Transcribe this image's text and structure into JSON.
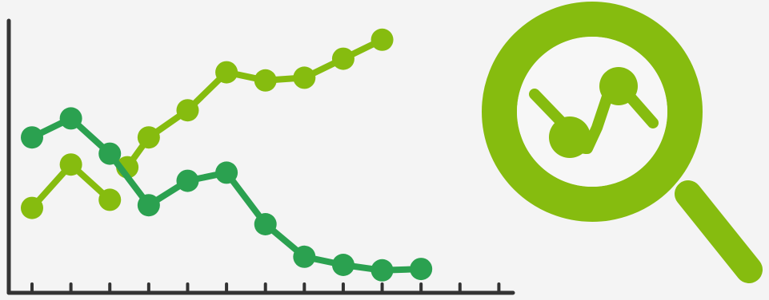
{
  "chart_data": {
    "type": "line",
    "title": "",
    "xlabel": "",
    "ylabel": "",
    "x": [
      0,
      1,
      2,
      3,
      4,
      5,
      6,
      7,
      8,
      9,
      10,
      11,
      12
    ],
    "xlim": [
      0,
      12.3
    ],
    "ylim": [
      0,
      100
    ],
    "grid": false,
    "legend": "none",
    "ticks_x_count": 13,
    "series": [
      {
        "color": "#86bc0f",
        "points": [
          [
            0,
            31
          ],
          [
            1,
            47
          ],
          [
            2,
            34
          ],
          [
            2.45,
            46
          ],
          [
            3,
            57
          ],
          [
            4,
            67
          ],
          [
            5,
            81
          ],
          [
            6,
            78
          ],
          [
            7,
            79
          ],
          [
            8,
            86
          ],
          [
            9,
            93
          ]
        ],
        "break_after_index": 2
      },
      {
        "color": "#2ba150",
        "points": [
          [
            0,
            57
          ],
          [
            1,
            64
          ],
          [
            2,
            51
          ],
          [
            3,
            32
          ],
          [
            4,
            41
          ],
          [
            5,
            44
          ],
          [
            6,
            25
          ],
          [
            7,
            13
          ],
          [
            8,
            10
          ],
          [
            9,
            8
          ],
          [
            10,
            8.5
          ]
        ]
      }
    ]
  },
  "decoration": {
    "icon": "magnifier-icon",
    "lens_color": "#86bc0f",
    "handle_color": "#86bc0f"
  }
}
